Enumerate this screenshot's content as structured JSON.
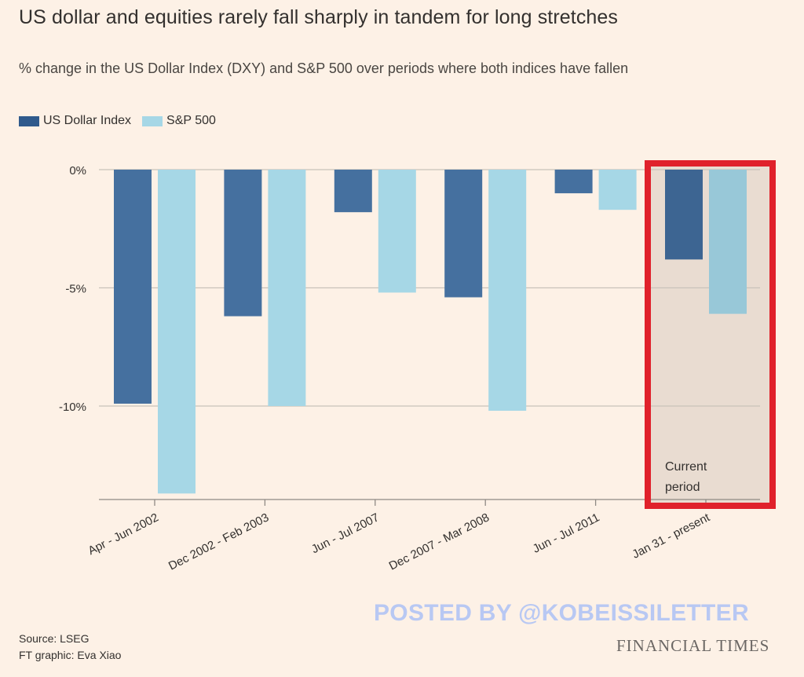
{
  "title": "US dollar and equities rarely fall sharply in tandem for long stretches",
  "subtitle": "% change in the US Dollar Index (DXY) and S&P 500 over periods where both indices have fallen",
  "legend": [
    {
      "label": "US Dollar Index",
      "color": "#3b6697"
    },
    {
      "label": "S&P 500",
      "color": "#a6d7e6"
    }
  ],
  "chart_data": {
    "type": "bar",
    "categories": [
      "Apr - Jun 2002",
      "Dec 2002 - Feb 2003",
      "Jun - Jul 2007",
      "Dec 2007 - Mar 2008",
      "Jun - Jul 2011",
      "Jan 31 - present"
    ],
    "series": [
      {
        "name": "US Dollar Index",
        "color": "#3b6697",
        "values": [
          -9.9,
          -6.2,
          -1.8,
          -5.4,
          -1.0,
          -3.8
        ]
      },
      {
        "name": "S&P 500",
        "color": "#a6d7e6",
        "values": [
          -13.7,
          -10.0,
          -5.2,
          -10.2,
          -1.7,
          -6.1
        ]
      }
    ],
    "ylim": [
      -14,
      0
    ],
    "yticks": [
      0,
      -5,
      -10
    ],
    "ytick_labels": [
      "0%",
      "-5%",
      "-10%"
    ],
    "grid": true,
    "legend_position": "top-left",
    "highlight": {
      "category_index": 5,
      "label_line1": "Current",
      "label_line2": "period",
      "border_color": "#e0212b",
      "fill_color": "#e9dcd1"
    }
  },
  "footer": {
    "source_line1": "Source: LSEG",
    "source_line2": "FT graphic: Eva Xiao",
    "watermark": "POSTED BY @KOBEISSILETTER",
    "publisher": "FINANCIAL TIMES"
  }
}
